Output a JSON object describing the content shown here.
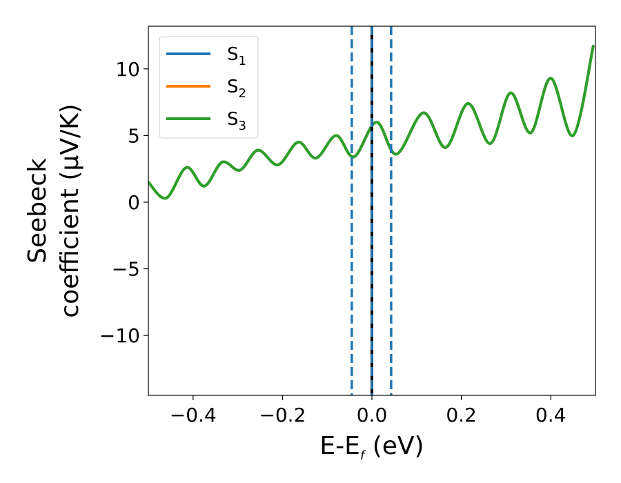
{
  "chart_data": {
    "type": "line",
    "xlabel": {
      "main": "E-E",
      "sub": "f",
      "suffix": " (eV)"
    },
    "ylabel": {
      "line1": "Seebeck",
      "line2": "coefficient  (μV/K)"
    },
    "xlim": [
      -0.5,
      0.5
    ],
    "ylim": [
      -14.5,
      13.2
    ],
    "xticks": [
      -0.4,
      -0.2,
      0.0,
      0.2,
      0.4
    ],
    "xtick_labels": [
      "−0.4",
      "−0.2",
      "0.0",
      "0.2",
      "0.4"
    ],
    "yticks": [
      -10,
      -5,
      0,
      5,
      10
    ],
    "ytick_labels": [
      "−10",
      "−5",
      "0",
      "5",
      "10"
    ],
    "vlines": [
      {
        "x": -0.045,
        "style": "dashed",
        "color": "#1f77b4"
      },
      {
        "x": 0.0,
        "style": "solid",
        "color": "#000000"
      },
      {
        "x": 0.0,
        "style": "dashed",
        "color": "#1f77b4"
      },
      {
        "x": 0.043,
        "style": "dashed",
        "color": "#1f77b4"
      }
    ],
    "legend": {
      "position": "top-left",
      "entries": [
        {
          "name": "S",
          "sub": "1",
          "color": "#1f77b4"
        },
        {
          "name": "S",
          "sub": "2",
          "color": "#ff7f0e"
        },
        {
          "name": "S",
          "sub": "3",
          "color": "#2ca02c"
        }
      ]
    },
    "series": [
      {
        "name": "S1",
        "color": "#1f77b4",
        "x": [
          -0.5,
          -0.46,
          -0.415,
          -0.375,
          -0.335,
          -0.295,
          -0.255,
          -0.21,
          -0.165,
          -0.125,
          -0.08,
          -0.04,
          0.01,
          0.055,
          0.115,
          0.165,
          0.215,
          0.265,
          0.31,
          0.355,
          0.4,
          0.45,
          0.495
        ],
        "y": [
          1.5,
          0.3,
          2.6,
          1.2,
          3.0,
          2.4,
          3.9,
          2.8,
          4.5,
          3.3,
          5.0,
          3.4,
          6.0,
          3.6,
          6.7,
          4.1,
          7.4,
          4.4,
          8.2,
          5.2,
          9.3,
          5.0,
          11.7
        ]
      },
      {
        "name": "S2",
        "color": "#ff7f0e",
        "x": [
          -0.5,
          -0.46,
          -0.415,
          -0.375,
          -0.335,
          -0.295,
          -0.255,
          -0.21,
          -0.165,
          -0.125,
          -0.08,
          -0.04,
          0.01,
          0.055,
          0.115,
          0.165,
          0.215,
          0.265,
          0.31,
          0.355,
          0.4,
          0.45,
          0.495
        ],
        "y": [
          1.5,
          0.3,
          2.6,
          1.2,
          3.0,
          2.4,
          3.9,
          2.8,
          4.5,
          3.3,
          5.0,
          3.4,
          6.0,
          3.6,
          6.7,
          4.1,
          7.4,
          4.4,
          8.2,
          5.2,
          9.3,
          5.0,
          11.7
        ]
      },
      {
        "name": "S3",
        "color": "#2ca02c",
        "x": [
          -0.5,
          -0.46,
          -0.415,
          -0.375,
          -0.335,
          -0.295,
          -0.255,
          -0.21,
          -0.165,
          -0.125,
          -0.08,
          -0.04,
          0.01,
          0.055,
          0.115,
          0.165,
          0.215,
          0.265,
          0.31,
          0.355,
          0.4,
          0.45,
          0.495
        ],
        "y": [
          1.5,
          0.3,
          2.6,
          1.2,
          3.0,
          2.4,
          3.9,
          2.8,
          4.5,
          3.3,
          5.0,
          3.4,
          6.0,
          3.6,
          6.7,
          4.1,
          7.4,
          4.4,
          8.2,
          5.2,
          9.3,
          5.0,
          11.7
        ]
      }
    ]
  }
}
